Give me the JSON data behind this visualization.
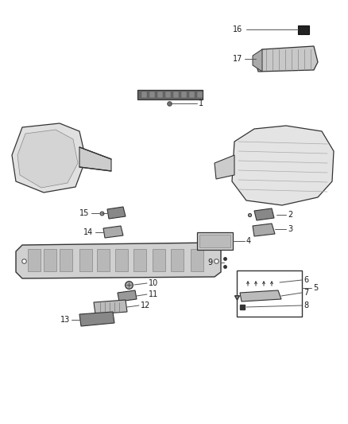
{
  "bg_color": "#ffffff",
  "text_color": "#1a1a1a",
  "line_color": "#555555",
  "draw_color": "#333333",
  "font_size": 7.0,
  "fig_w": 4.38,
  "fig_h": 5.33,
  "dpi": 100
}
